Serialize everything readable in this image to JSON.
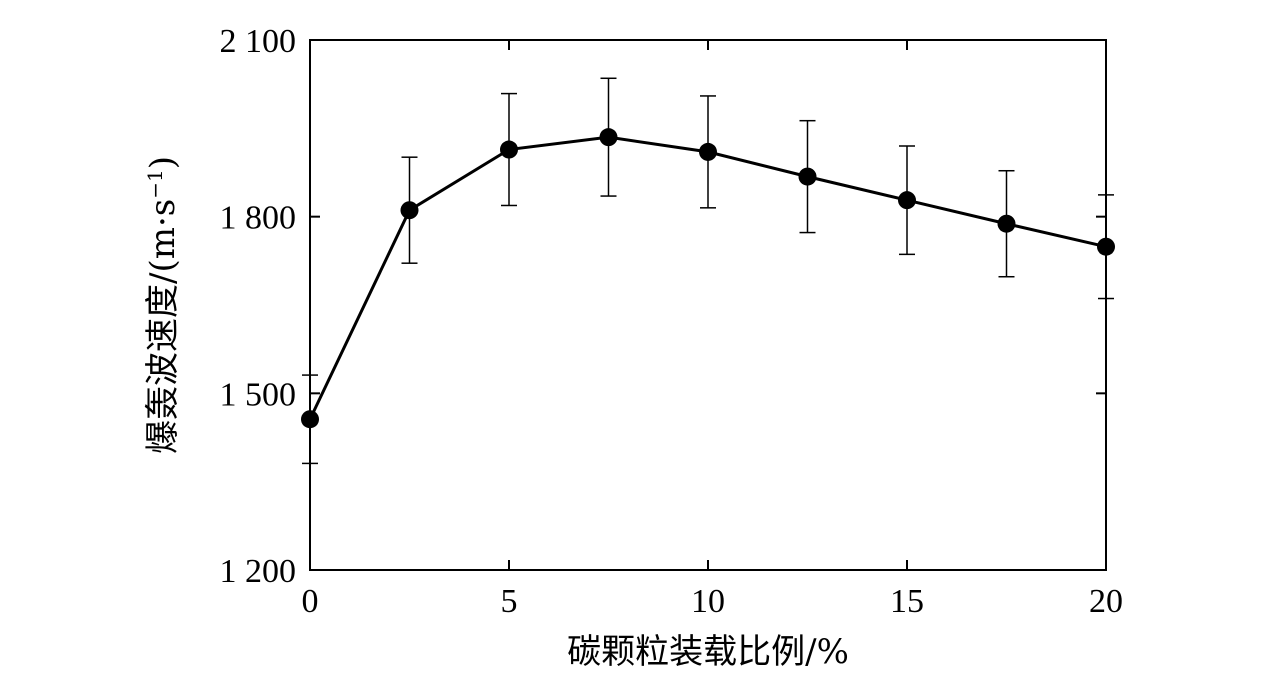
{
  "chart_data": {
    "type": "line",
    "title": "",
    "xlabel": "碳颗粒装载比例/%",
    "ylabel_main": "爆轰波速度/(m·s",
    "ylabel_sup": "−1",
    "ylabel_close": ")",
    "xlim": [
      0,
      20
    ],
    "ylim": [
      1200,
      2100
    ],
    "xticks": [
      0,
      5,
      10,
      15,
      20
    ],
    "yticks": [
      1200,
      1500,
      1800,
      2100
    ],
    "xtick_labels": [
      "0",
      "5",
      "10",
      "15",
      "20"
    ],
    "ytick_labels": [
      "1 200",
      "1 500",
      "1 800",
      "2 100"
    ],
    "grid": false,
    "series": [
      {
        "x": [
          0,
          2.5,
          5,
          7.5,
          10,
          12.5,
          15,
          17.5,
          20
        ],
        "y": [
          1456,
          1811,
          1914,
          1935,
          1910,
          1868,
          1828,
          1788,
          1749
        ],
        "error": [
          75,
          90,
          95,
          100,
          95,
          95,
          92,
          90,
          88
        ],
        "marker": "circle",
        "color": "#000000"
      }
    ]
  }
}
